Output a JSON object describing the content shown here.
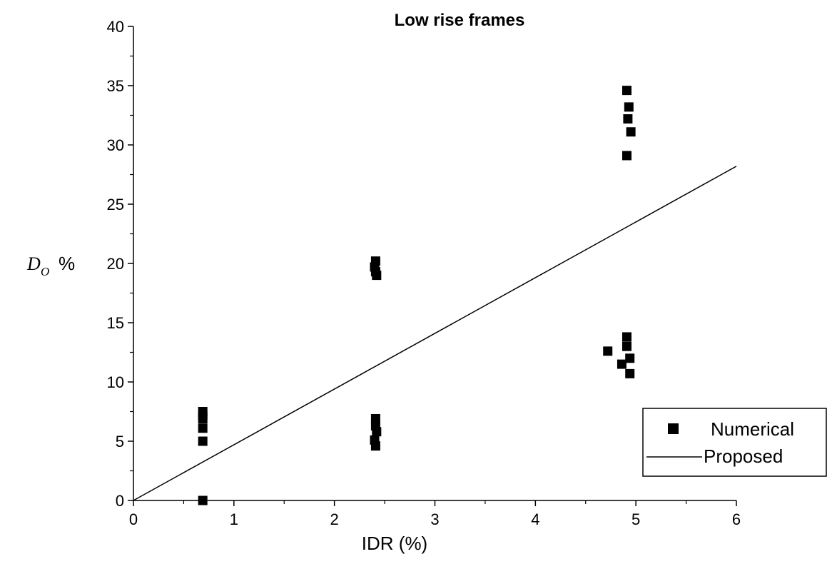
{
  "chart_data": {
    "type": "scatter",
    "title": "Low rise frames",
    "xlabel": "IDR (%)",
    "ylabel": {
      "symbol": "D",
      "subscript": "O",
      "unit": "%"
    },
    "xlim": [
      0,
      6
    ],
    "ylim": [
      0,
      40
    ],
    "x_ticks": [
      0,
      1,
      2,
      3,
      4,
      5,
      6
    ],
    "y_ticks": [
      0,
      5,
      10,
      15,
      20,
      25,
      30,
      35,
      40
    ],
    "x_minor_step": 0.5,
    "y_minor_step": 2.5,
    "grid": false,
    "legend_position": "bottom-right",
    "series": [
      {
        "name": "Numerical",
        "kind": "scatter",
        "marker": "square",
        "color": "#000000",
        "points": [
          [
            0.69,
            7.5
          ],
          [
            0.69,
            7.2
          ],
          [
            0.69,
            6.9
          ],
          [
            0.69,
            6.1
          ],
          [
            0.69,
            5.0
          ],
          [
            0.69,
            0.0
          ],
          [
            2.41,
            20.2
          ],
          [
            2.4,
            19.7
          ],
          [
            2.41,
            19.3
          ],
          [
            2.42,
            19.0
          ],
          [
            2.41,
            6.9
          ],
          [
            2.41,
            6.3
          ],
          [
            2.42,
            5.8
          ],
          [
            2.4,
            5.1
          ],
          [
            2.41,
            4.6
          ],
          [
            4.91,
            34.6
          ],
          [
            4.93,
            33.2
          ],
          [
            4.92,
            32.2
          ],
          [
            4.95,
            31.1
          ],
          [
            4.91,
            29.1
          ],
          [
            4.91,
            13.8
          ],
          [
            4.91,
            13.0
          ],
          [
            4.72,
            12.6
          ],
          [
            4.94,
            12.0
          ],
          [
            4.86,
            11.5
          ],
          [
            4.94,
            10.7
          ]
        ]
      },
      {
        "name": "Proposed",
        "kind": "line",
        "color": "#000000",
        "points": [
          [
            0,
            0
          ],
          [
            6,
            28.2
          ]
        ]
      }
    ]
  }
}
